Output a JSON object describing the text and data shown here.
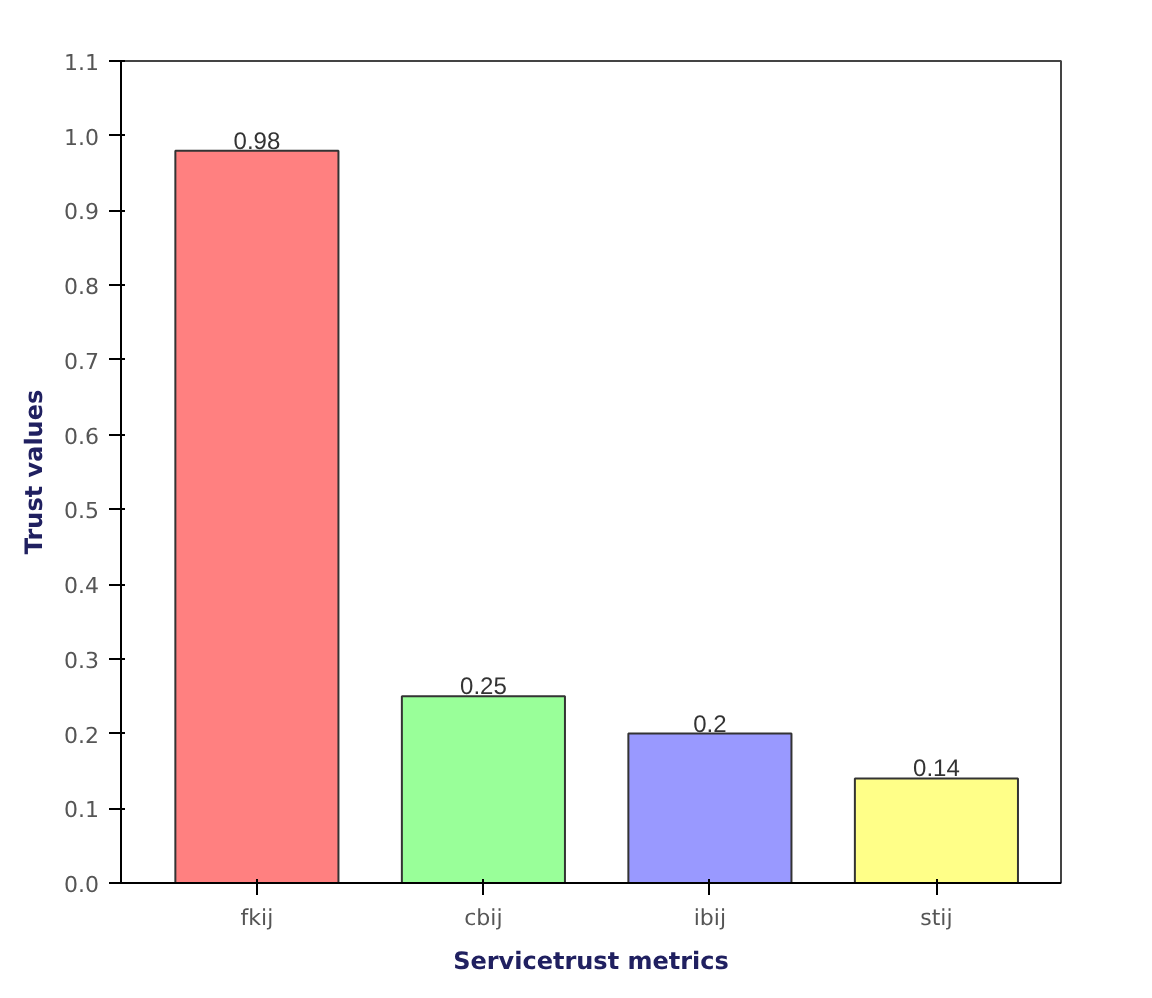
{
  "chart_data": {
    "type": "bar",
    "xlabel": "Servicetrust metrics",
    "ylabel": "Trust values",
    "categories": [
      "fkij",
      "cbij",
      "ibij",
      "stij"
    ],
    "values": [
      0.98,
      0.25,
      0.2,
      0.14
    ],
    "colors": [
      "#ff8080",
      "#99ff99",
      "#9999ff",
      "#ffff88"
    ],
    "ylim": [
      0,
      1.1
    ],
    "yticks": [
      {
        "value": 0,
        "label": "0.0"
      },
      0.1,
      0.2,
      0.3,
      0.4,
      0.5,
      0.6,
      0.7,
      0.8,
      0.9,
      {
        "value": 1.0,
        "label": "1.0"
      },
      1.1
    ],
    "data_labels": true,
    "grid": false
  }
}
